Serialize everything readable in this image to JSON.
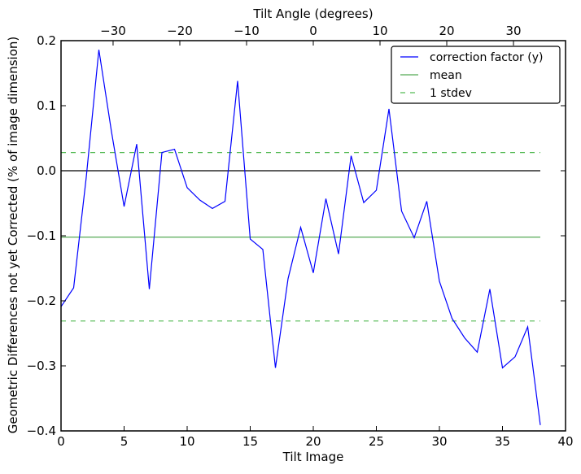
{
  "chart_data": {
    "type": "line",
    "xlabel": "Tilt Image",
    "ylabel": "Geometric Differences not yet Corrected (% of image dimension)",
    "top_xlabel": "Tilt Angle (degrees)",
    "xlim": [
      0,
      40
    ],
    "ylim": [
      -0.4,
      0.2
    ],
    "top_xlim": [
      -37.8,
      37.8
    ],
    "xticks": [
      0,
      5,
      10,
      15,
      20,
      25,
      30,
      35,
      40
    ],
    "yticks": [
      -0.4,
      -0.3,
      -0.2,
      -0.1,
      0.0,
      0.1,
      0.2
    ],
    "ytick_labels": [
      "−0.4",
      "−0.3",
      "−0.2",
      "−0.1",
      "0.0",
      "0.1",
      "0.2"
    ],
    "top_xticks": [
      -30,
      -20,
      -10,
      0,
      10,
      20,
      30
    ],
    "top_xtick_labels": [
      "−30",
      "−20",
      "−10",
      "0",
      "10",
      "20",
      "30"
    ],
    "grid": false,
    "legend_placement": "top-right",
    "series": [
      {
        "name": "correction factor (y)",
        "color": "#0000ff",
        "style": "solid",
        "x": [
          0,
          1,
          2,
          3,
          4,
          5,
          6,
          7,
          8,
          9,
          10,
          11,
          12,
          13,
          14,
          15,
          16,
          17,
          18,
          19,
          20,
          21,
          22,
          23,
          24,
          25,
          26,
          27,
          28,
          29,
          30,
          31,
          32,
          33,
          34,
          35,
          36,
          37,
          38
        ],
        "y": [
          -0.209,
          -0.18,
          -0.01,
          0.186,
          0.06,
          -0.055,
          0.041,
          -0.182,
          0.028,
          0.033,
          -0.026,
          -0.045,
          -0.058,
          -0.047,
          0.138,
          -0.105,
          -0.121,
          -0.303,
          -0.166,
          -0.087,
          -0.157,
          -0.043,
          -0.128,
          0.023,
          -0.049,
          -0.03,
          0.095,
          -0.062,
          -0.103,
          -0.047,
          -0.17,
          -0.227,
          -0.257,
          -0.279,
          -0.182,
          -0.303,
          -0.286,
          -0.24,
          -0.391
        ]
      },
      {
        "name": "mean",
        "color": "#55aa55",
        "style": "solid",
        "x": [
          0,
          38
        ],
        "y": [
          -0.102,
          -0.102
        ]
      },
      {
        "name": "1 stdev",
        "color": "#55bb55",
        "style": "dashed",
        "x": [
          0,
          38
        ],
        "y": [
          0.028,
          0.028
        ]
      },
      {
        "color": "#55bb55",
        "style": "dashed",
        "x": [
          0,
          38
        ],
        "y": [
          -0.231,
          -0.231
        ]
      },
      {
        "color": "#000000",
        "style": "solid",
        "x": [
          0,
          38
        ],
        "y": [
          0,
          0
        ]
      }
    ]
  }
}
